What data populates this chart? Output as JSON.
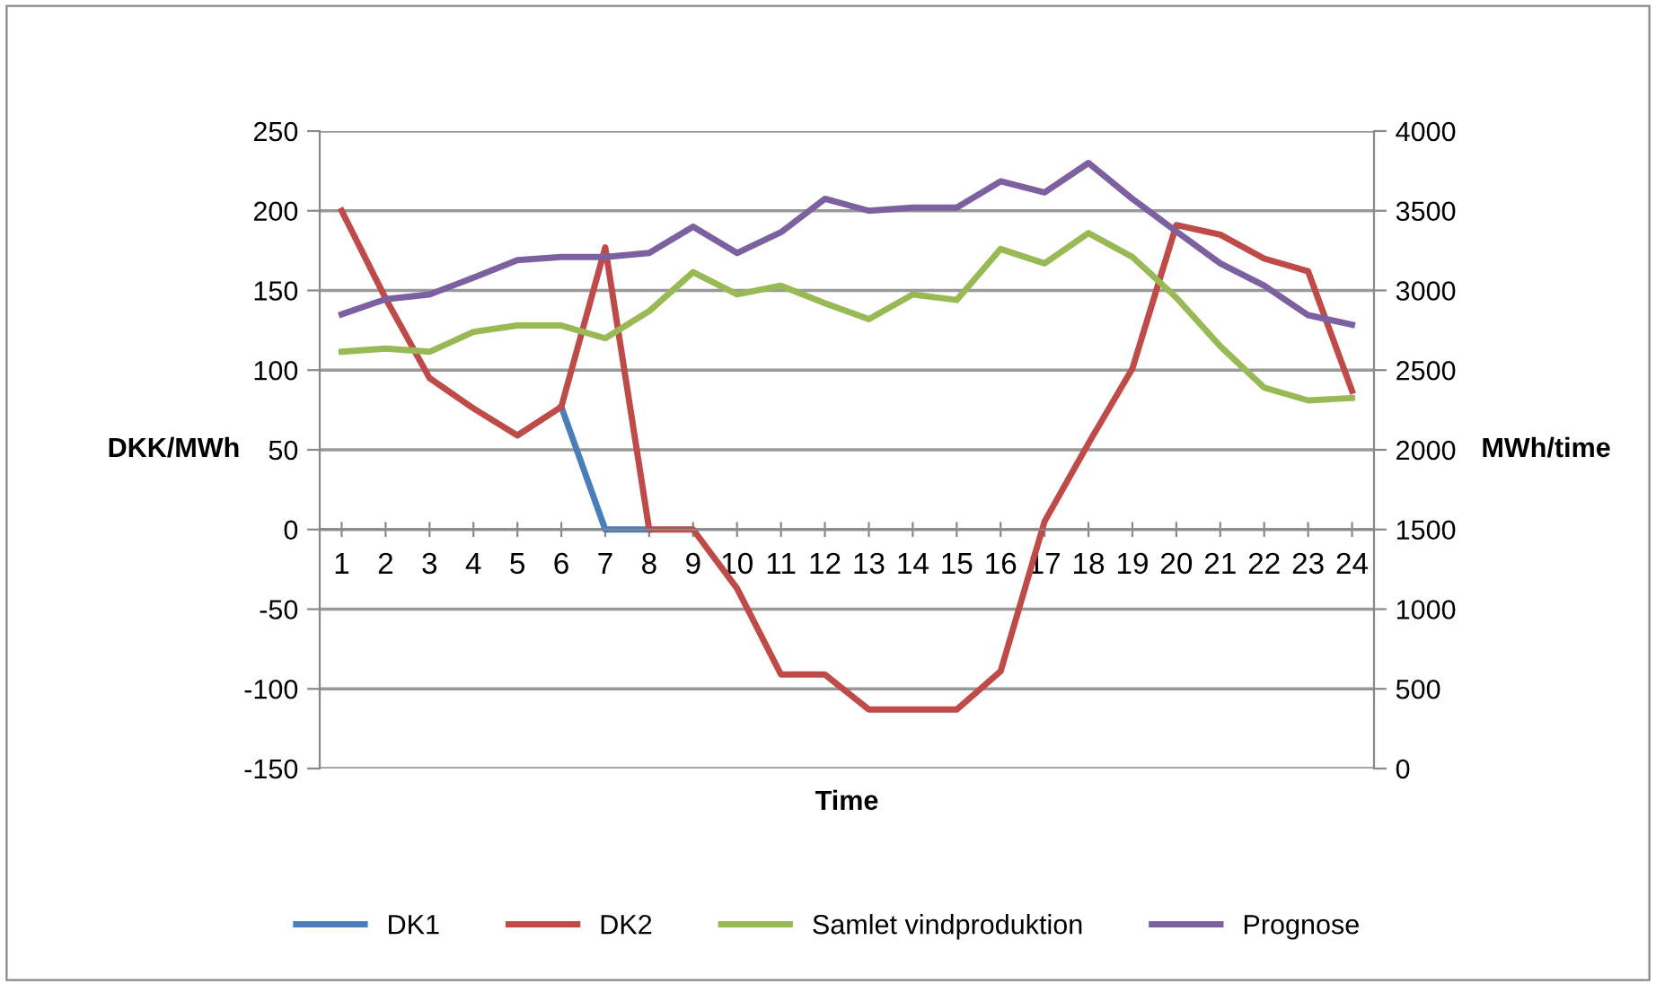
{
  "chart_data": {
    "type": "line",
    "xlabel": "Time",
    "ylabel": "DKK/MWh",
    "y2label": "MWh/time",
    "categories": [
      "1",
      "2",
      "3",
      "4",
      "5",
      "6",
      "7",
      "8",
      "9",
      "10",
      "11",
      "12",
      "13",
      "14",
      "15",
      "16",
      "17",
      "18",
      "19",
      "20",
      "21",
      "22",
      "23",
      "24"
    ],
    "series": [
      {
        "name": "DK1",
        "color": "#4a7ebb",
        "values": [
          null,
          null,
          null,
          null,
          null,
          77,
          0,
          0,
          null,
          null,
          null,
          null,
          null,
          null,
          null,
          null,
          null,
          null,
          null,
          null,
          null,
          null,
          null,
          null
        ]
      },
      {
        "name": "DK2",
        "color": "#be4b48",
        "values": [
          200,
          145,
          95,
          76,
          59,
          77,
          177,
          0,
          0,
          -37,
          -91,
          -91,
          -113,
          -113,
          -113,
          -89,
          5,
          54,
          101,
          191,
          185,
          170,
          162,
          87
        ]
      },
      {
        "name": "Samlet vindproduktion",
        "color": "#98b954",
        "axis": "y2",
        "values": [
          2615,
          2635,
          2615,
          2740,
          2780,
          2780,
          2700,
          2870,
          3115,
          2975,
          3030,
          2920,
          2820,
          2975,
          2940,
          3260,
          3170,
          3360,
          3210,
          2955,
          2650,
          2390,
          2310,
          2325
        ]
      },
      {
        "name": "Prognose",
        "color": "#7d60a0",
        "axis": "y2",
        "values": [
          2850,
          2945,
          2975,
          3080,
          3190,
          3210,
          3210,
          3235,
          3400,
          3235,
          3365,
          3575,
          3500,
          3520,
          3520,
          3685,
          3615,
          3800,
          3575,
          3370,
          3170,
          3030,
          2845,
          2785
        ]
      }
    ],
    "ylim": [
      -150,
      250
    ],
    "yticks": [
      -150,
      -100,
      -50,
      0,
      50,
      100,
      150,
      200,
      250
    ],
    "y2lim": [
      0,
      4000
    ],
    "y2ticks": [
      0,
      500,
      1000,
      1500,
      2000,
      2500,
      3000,
      3500,
      4000
    ],
    "grid": "y",
    "legend": "bottom",
    "marker": "none",
    "line_style": "solid"
  }
}
